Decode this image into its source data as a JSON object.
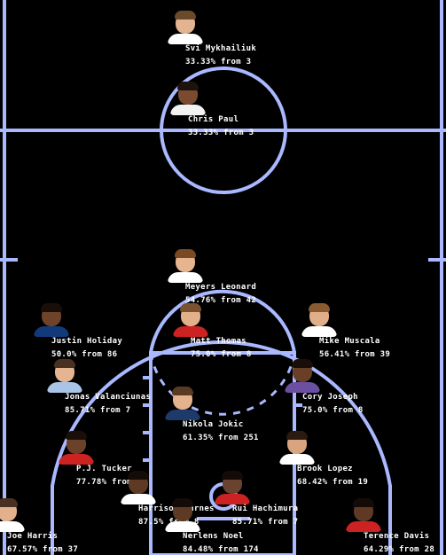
{
  "colors": {
    "background": "#000000",
    "court_lines": "#a9b8ff",
    "label_text": "#ffffff"
  },
  "players": [
    {
      "name": "Svi Mykhailiuk",
      "stat": "33.33% from 3",
      "skin": "#e2b48f",
      "hair": "#6b4a2b",
      "jersey": "#ffffff"
    },
    {
      "name": "Chris Paul",
      "stat": "33.33% from 3",
      "skin": "#7a4b31",
      "hair": "#1e130c",
      "jersey": "#f2f2f2"
    },
    {
      "name": "Meyers Leonard",
      "stat": "54.76% from 42",
      "skin": "#e6b48e",
      "hair": "#7a4a24",
      "jersey": "#ffffff"
    },
    {
      "name": "Matt Thomas",
      "stat": "75.0% from 8",
      "skin": "#e2b08a",
      "hair": "#7a5230",
      "jersey": "#cc2222"
    },
    {
      "name": "Justin Holiday",
      "stat": "50.0% from 86",
      "skin": "#6e4329",
      "hair": "#1a0f08",
      "jersey": "#123a7a"
    },
    {
      "name": "Mike Muscala",
      "stat": "56.41% from 39",
      "skin": "#e0ae88",
      "hair": "#8a5a30",
      "jersey": "#ffffff"
    },
    {
      "name": "Jonas Valanciunas",
      "stat": "85.71% from 7",
      "skin": "#e4b590",
      "hair": "#4a3020",
      "jersey": "#a9c4e6"
    },
    {
      "name": "Cory Joseph",
      "stat": "75.0% from 8",
      "skin": "#6a3f27",
      "hair": "#1a0f08",
      "jersey": "#6b4fa0"
    },
    {
      "name": "Nikola Jokic",
      "stat": "61.35% from 251",
      "skin": "#e3b38d",
      "hair": "#5a3a22",
      "jersey": "#1d3a6b"
    },
    {
      "name": "P.J. Tucker",
      "stat": "77.78% from 9",
      "skin": "#6b4129",
      "hair": "#1a0f08",
      "jersey": "#cc2222"
    },
    {
      "name": "Brook Lopez",
      "stat": "68.42% from 19",
      "skin": "#d9a57e",
      "hair": "#2a1a10",
      "jersey": "#ffffff"
    },
    {
      "name": "Harrison Barnes",
      "stat": "87.5% from 8",
      "skin": "#5e3a25",
      "hair": "#140b06",
      "jersey": "#ffffff"
    },
    {
      "name": "Rui Hachimura",
      "stat": "85.71% from 7",
      "skin": "#6a4330",
      "hair": "#140b06",
      "jersey": "#cc2222"
    },
    {
      "name": "Nerlens Noel",
      "stat": "84.48% from 174",
      "skin": "#5e3a25",
      "hair": "#140b06",
      "jersey": "#ffffff"
    },
    {
      "name": "Joe Harris",
      "stat": "67.57% from 37",
      "skin": "#e2b08a",
      "hair": "#4a3020",
      "jersey": "#ffffff"
    },
    {
      "name": "Terence Davis",
      "stat": "64.29% from 28",
      "skin": "#5e3a25",
      "hair": "#140b06",
      "jersey": "#cc2222"
    }
  ]
}
